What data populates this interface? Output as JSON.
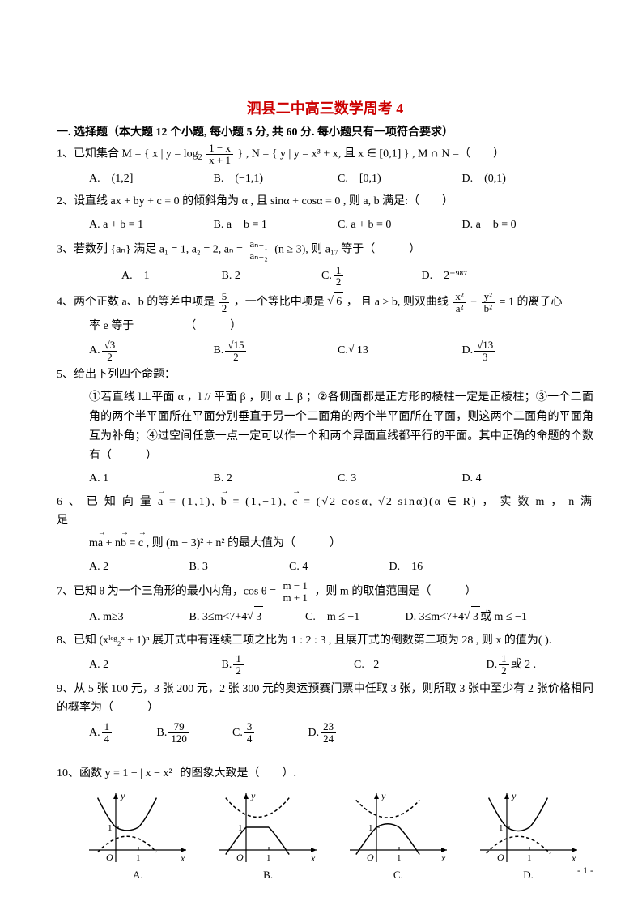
{
  "colors": {
    "title": "#cc0000",
    "text": "#000000",
    "background": "#ffffff",
    "graph_stroke": "#000000",
    "graph_dashed": "#000000"
  },
  "title": "泗县二中高三数学周考 4",
  "section_head": "一. 选择题（本大题 12 个小题, 每小题 5 分, 共 60 分. 每小题只有一项符合要求）",
  "q1": {
    "stem_pre": "1、已知集合 M = { x | y = log",
    "log_sub": "2",
    "frac_n": "1 − x",
    "frac_d": "x + 1",
    "stem_mid": " } ,  N = { y | y = x³ + x, 且 x ∈ [0,1] } ,  M ∩ N =（　　）",
    "A": "A.　(1,2]",
    "B": "B.　(−1,1)",
    "C": "C.　[0,1)",
    "D": "D.　(0,1)"
  },
  "q2": {
    "stem": "2、设直线 ax + by + c = 0 的倾斜角为 α , 且 sinα + cosα = 0 , 则 a, b 满足:（　　）",
    "A": "A.  a + b = 1",
    "B": "B. a − b = 1",
    "C": "C. a + b = 0",
    "D": "D. a − b = 0"
  },
  "q3": {
    "stem_pre": "3、若数列 {aₙ} 满足 a₁ = 1, a₂ = 2, aₙ = ",
    "frac_n": "aₙ₋₁",
    "frac_d": "aₙ₋₂",
    "stem_post": "(n ≥ 3), 则 a₁₇ 等于（　　　）",
    "A": "A.　1",
    "B": "B. 2",
    "C_n": "1",
    "C_d": "2",
    "C_pre": "C. ",
    "D": "D.　2⁻⁹⁸⁷"
  },
  "q4": {
    "stem_pre": "4、两个正数 a、b 的等差中项是 ",
    "frac1_n": "5",
    "frac1_d": "2",
    "stem_mid1": " ，一个等比中项是 ",
    "sqrt1": "6",
    "stem_mid2": " ， 且 a > b, 则双曲线 ",
    "frac2_n": "x²",
    "frac2_d": "a²",
    "minus": " − ",
    "frac3_n": "y²",
    "frac3_d": "b²",
    "stem_post": " = 1 的离子心",
    "line2": "率 e 等于　　　　　（　　　）",
    "A_pre": "A. ",
    "A_n": "√3",
    "A_d": "2",
    "B_pre": "B. ",
    "B_n": "√15",
    "B_d": "2",
    "C_pre": "C.  ",
    "C_sqrt": "13",
    "D_pre": "D. ",
    "D_n": "√13",
    "D_d": "3"
  },
  "q5": {
    "stem": "5、给出下列四个命题：",
    "body": "①若直线 l⊥平面 α ，l // 平面 β ，则 α ⊥ β ；②各侧面都是正方形的棱柱一定是正棱柱；③一个二面角的两个半平面所在平面分别垂直于另一个二面角的两个半平面所在平面，则这两个二面角的平面角互为补角；④过空间任意一点一定可以作一个和两个异面直线都平行的平面。其中正确的命题的个数有（　　　）",
    "A": "A. 1",
    "B": "B.  2",
    "C": "C.  3",
    "D": "D.  4"
  },
  "q6": {
    "stem_pre": "6 、 已 知 向 量 ",
    "vec_a": "a",
    "eq_a": " = (1,1), ",
    "vec_b": "b",
    "eq_b": " = (1,−1), ",
    "vec_c": "c",
    "eq_c": " = (√2 cosα, √2 sinα)(α ∈ R)  ， 实 数 m ， n 满 足",
    "line2_pre": "m",
    "line2_a": "a",
    "line2_mid1": " + n",
    "line2_b": "b",
    "line2_mid2": " = ",
    "line2_c": "c",
    "line2_post": ", 则 (m − 3)² + n² 的最大值为（　　　）",
    "A": "A.  2",
    "B": "B. 3",
    "C": "C.  4",
    "D": "D.　16"
  },
  "q7": {
    "stem_pre": "7、已知 θ 为一个三角形的最小内角，cos θ = ",
    "frac_n": "m − 1",
    "frac_d": "m + 1",
    "stem_post": "，则 m 的取值范围是（　　　）",
    "A": "A.  m≥3",
    "B_pre": "B.  3≤m<7+4",
    "B_sqrt": "3",
    "C": "C.　m ≤ −1",
    "D_pre": "D.  3≤m<7+4",
    "D_sqrt": "3",
    "D_post": " 或 m ≤ −1"
  },
  "q8": {
    "stem": "8、已知 (xˡᵒᵍ₂ˣ + 1)ⁿ 展开式中有连续三项之比为 1 : 2 : 3 , 且展开式的倒数第二项为 28 , 则 x 的值为( ).",
    "A": "A. 2",
    "B_pre": "B. ",
    "B_n": "1",
    "B_d": "2",
    "C": "C. −2",
    "D_pre": "D. ",
    "D_n": "1",
    "D_d": "2",
    "D_post": " 或 2 ."
  },
  "q9": {
    "stem": "9、从 5 张 100 元，3 张 200 元，2 张 300 元的奥运预赛门票中任取 3 张，则所取 3 张中至少有 2 张价格相同的概率为（　　　）",
    "A_pre": "A.  ",
    "A_n": "1",
    "A_d": "4",
    "B_pre": "B.  ",
    "B_n": "79",
    "B_d": "120",
    "C_pre": "C.  ",
    "C_n": "3",
    "C_d": "4",
    "D_pre": "D.  ",
    "D_n": "23",
    "D_d": "24"
  },
  "q10": {
    "stem": "10、函数 y = 1 − | x − x² | 的图象大致是（　　）.",
    "labels": {
      "A": "A.",
      "B": "B.",
      "C": "C.",
      "D": "D."
    },
    "axis": {
      "x": "x",
      "y": "y",
      "origin": "O",
      "one": "1"
    },
    "graphs": {
      "width": 130,
      "height": 95,
      "stroke": "#000000",
      "dash": "4,3",
      "line_width": 1.2
    }
  },
  "page_num": "- 1 -"
}
